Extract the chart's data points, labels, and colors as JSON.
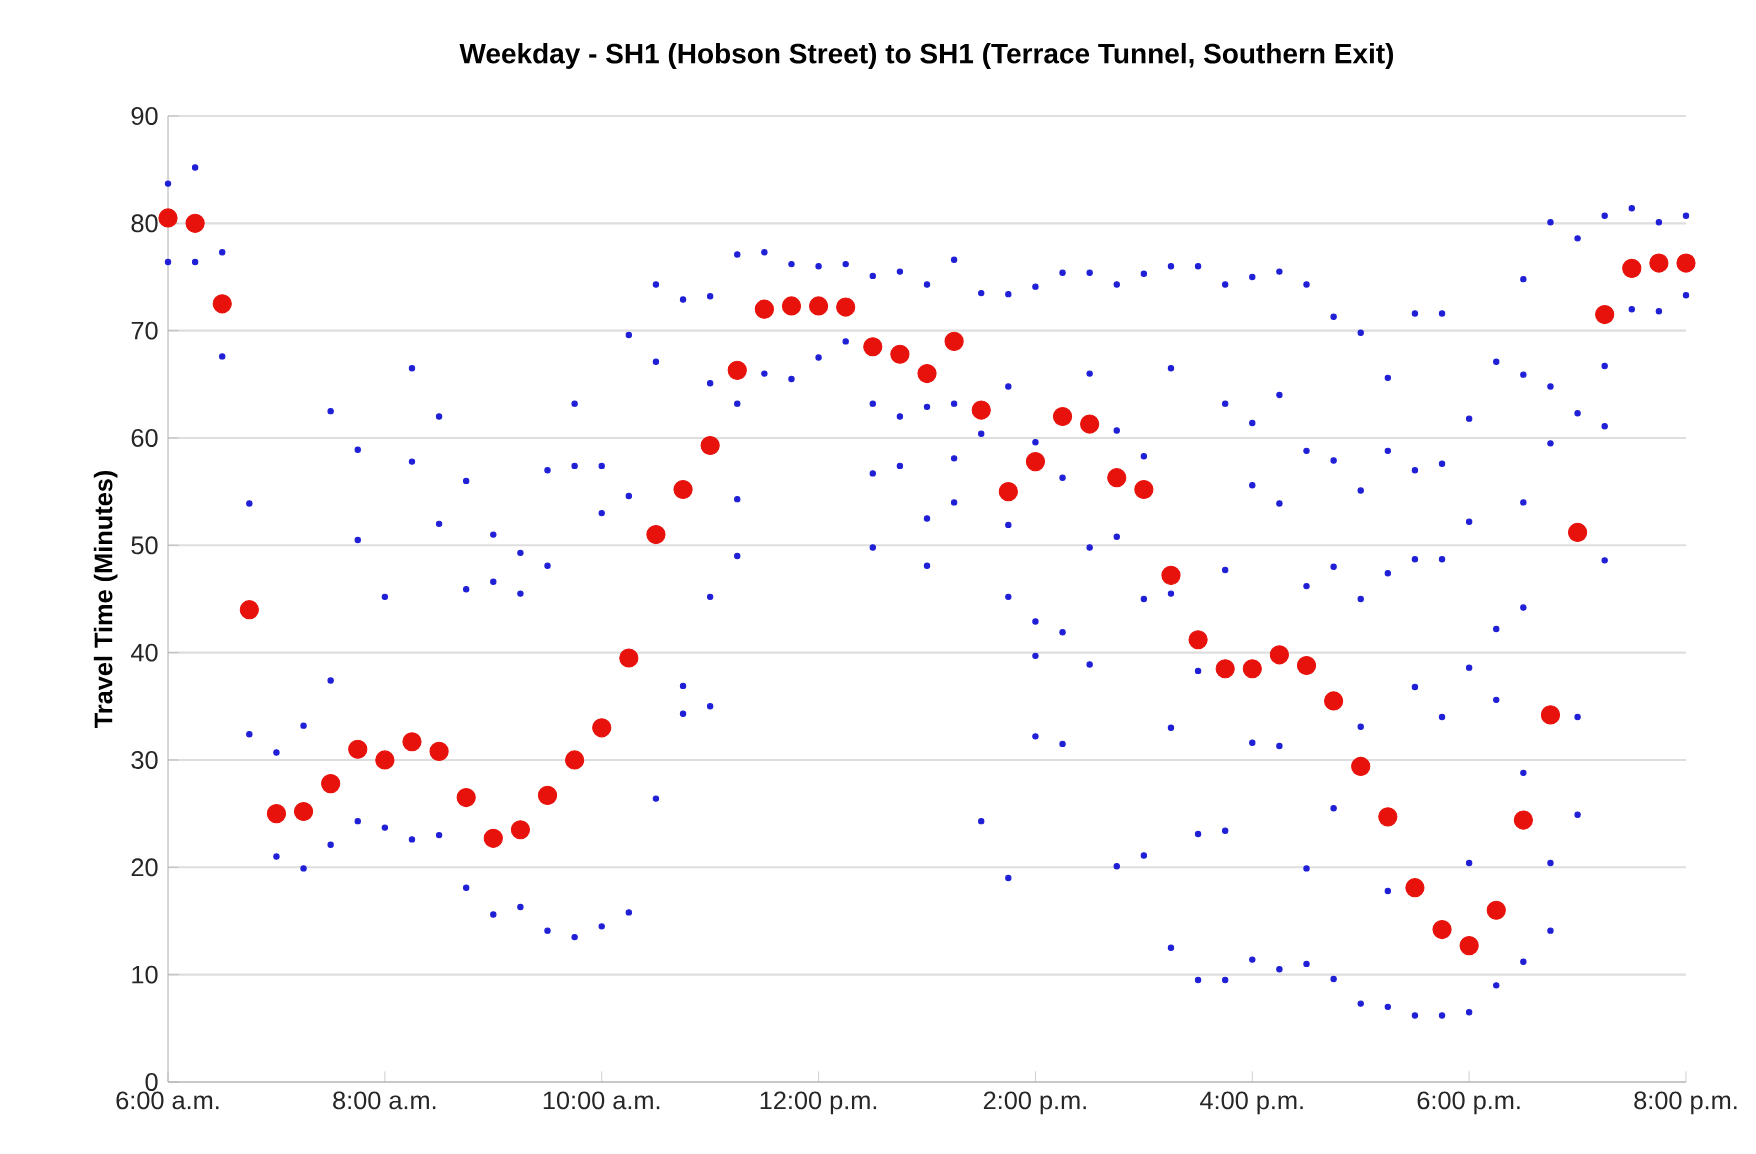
{
  "chart_data": {
    "type": "scatter",
    "title": "Weekday - SH1 (Hobson Street) to SH1 (Terrace Tunnel, Southern Exit)",
    "ylabel": "Travel Time (Minutes)",
    "xlim": [
      6,
      20
    ],
    "ylim": [
      0,
      90
    ],
    "xticks": [
      {
        "value": 6,
        "label": "6:00 a.m."
      },
      {
        "value": 8,
        "label": "8:00 a.m."
      },
      {
        "value": 10,
        "label": "10:00 a.m."
      },
      {
        "value": 12,
        "label": "12:00 p.m."
      },
      {
        "value": 14,
        "label": "2:00 p.m."
      },
      {
        "value": 16,
        "label": "4:00 p.m."
      },
      {
        "value": 18,
        "label": "6:00 p.m."
      },
      {
        "value": 20,
        "label": "8:00 p.m."
      }
    ],
    "yticks": [
      0,
      10,
      20,
      30,
      40,
      50,
      60,
      70,
      80,
      90
    ],
    "grid": "y",
    "series": [
      {
        "color": "#1f1fd6",
        "x": [
          6,
          6,
          6.25,
          6.25,
          6.5,
          6.5,
          6.75,
          6.75,
          7,
          7,
          7.25,
          7.25,
          7.5,
          7.5,
          7.5,
          7.75,
          7.75,
          7.75,
          8,
          8,
          8.25,
          8.25,
          8.25,
          8.5,
          8.5,
          8.5,
          8.75,
          8.75,
          8.75,
          9,
          9,
          9,
          9.25,
          9.25,
          9.25,
          9.5,
          9.5,
          9.5,
          9.75,
          9.75,
          9.75,
          10,
          10,
          10,
          10.25,
          10.25,
          10.25,
          10.5,
          10.5,
          10.5,
          10.75,
          10.75,
          10.75,
          11,
          11,
          11,
          11,
          11.25,
          11.25,
          11.25,
          11.25,
          11.5,
          11.5,
          11.75,
          11.75,
          12,
          12,
          12.25,
          12.25,
          12.5,
          12.5,
          12.5,
          12.5,
          12.75,
          12.75,
          12.75,
          13,
          13,
          13,
          13,
          13.25,
          13.25,
          13.25,
          13.25,
          13.5,
          13.5,
          13.5,
          13.75,
          13.75,
          13.75,
          13.75,
          13.75,
          14,
          14,
          14,
          14,
          14,
          14.25,
          14.25,
          14.25,
          14.25,
          14.5,
          14.5,
          14.5,
          14.5,
          14.75,
          14.75,
          14.75,
          14.75,
          15,
          15,
          15,
          15,
          15.25,
          15.25,
          15.25,
          15.25,
          15.25,
          15.5,
          15.5,
          15.5,
          15.5,
          15.75,
          15.75,
          15.75,
          15.75,
          15.75,
          16,
          16,
          16,
          16,
          16,
          16.25,
          16.25,
          16.25,
          16.25,
          16.25,
          16.5,
          16.5,
          16.5,
          16.5,
          16.5,
          16.75,
          16.75,
          16.75,
          16.75,
          16.75,
          17,
          17,
          17,
          17,
          17,
          17.25,
          17.25,
          17.25,
          17.25,
          17.25,
          17.5,
          17.5,
          17.5,
          17.5,
          17.5,
          17.75,
          17.75,
          17.75,
          17.75,
          17.75,
          18,
          18,
          18,
          18,
          18,
          18.25,
          18.25,
          18.25,
          18.25,
          18.5,
          18.5,
          18.5,
          18.5,
          18.5,
          18.5,
          18.75,
          18.75,
          18.75,
          18.75,
          18.75,
          19,
          19,
          19,
          19,
          19.25,
          19.25,
          19.25,
          19.25,
          19.5,
          19.5,
          19.75,
          19.75,
          20,
          20
        ],
        "values": [
          83.7,
          76.4,
          85.2,
          76.4,
          77.3,
          67.6,
          53.9,
          32.4,
          30.7,
          21,
          33.2,
          19.9,
          62.5,
          37.4,
          22.1,
          58.9,
          50.5,
          24.3,
          45.2,
          23.7,
          66.5,
          57.8,
          22.6,
          62,
          52,
          23,
          56,
          45.9,
          18.1,
          51,
          46.6,
          15.6,
          49.3,
          45.5,
          16.3,
          57,
          48.1,
          14.1,
          63.2,
          57.4,
          13.5,
          57.4,
          53,
          14.5,
          69.6,
          54.6,
          15.8,
          74.3,
          67.1,
          26.4,
          72.9,
          36.9,
          34.3,
          73.2,
          65.1,
          45.2,
          35,
          77.1,
          63.2,
          54.3,
          49,
          77.3,
          66,
          76.2,
          65.5,
          76,
          67.5,
          76.2,
          69,
          75.1,
          63.2,
          56.7,
          49.8,
          75.5,
          62,
          57.4,
          74.3,
          62.9,
          52.5,
          48.1,
          76.6,
          63.2,
          58.1,
          54,
          73.5,
          60.4,
          24.3,
          73.4,
          64.8,
          51.9,
          45.2,
          19,
          74.1,
          59.6,
          42.9,
          39.7,
          32.2,
          75.4,
          56.3,
          41.9,
          31.5,
          75.4,
          66,
          49.8,
          38.9,
          74.3,
          60.7,
          50.8,
          20.1,
          75.3,
          58.3,
          45,
          21.1,
          76,
          66.5,
          45.5,
          33,
          12.5,
          76,
          38.3,
          23.1,
          9.5,
          74.3,
          63.2,
          47.7,
          23.4,
          9.5,
          75,
          61.4,
          55.6,
          31.6,
          11.4,
          75.5,
          64,
          53.9,
          31.3,
          10.5,
          74.3,
          58.8,
          46.2,
          19.9,
          11,
          71.3,
          57.9,
          48,
          25.5,
          9.6,
          69.8,
          55.1,
          45,
          33.1,
          7.3,
          65.6,
          58.8,
          47.4,
          17.8,
          7,
          71.6,
          57,
          48.7,
          36.8,
          6.2,
          71.6,
          57.6,
          48.7,
          34,
          6.2,
          61.8,
          52.2,
          38.6,
          20.4,
          6.5,
          67.1,
          42.2,
          35.6,
          9,
          74.8,
          65.9,
          54,
          44.2,
          28.8,
          11.2,
          80.1,
          64.8,
          59.5,
          20.4,
          14.1,
          78.6,
          62.3,
          34,
          24.9,
          80.7,
          66.7,
          61.1,
          48.6,
          81.4,
          72,
          80.1,
          71.8,
          80.7,
          73.3
        ]
      },
      {
        "color": "#e8120c",
        "x": [
          6,
          6.25,
          6.5,
          6.75,
          7,
          7.25,
          7.5,
          7.75,
          8,
          8.25,
          8.5,
          8.75,
          9,
          9.25,
          9.5,
          9.75,
          10,
          10.25,
          10.5,
          10.75,
          11,
          11.25,
          11.5,
          11.75,
          12,
          12.25,
          12.5,
          12.75,
          13,
          13.25,
          13.5,
          13.75,
          14,
          14.25,
          14.5,
          14.75,
          15,
          15.25,
          15.5,
          15.75,
          16,
          16.25,
          16.5,
          16.75,
          17,
          17.25,
          17.5,
          17.75,
          18,
          18.25,
          18.5,
          18.75,
          19,
          19.25,
          19.5,
          19.75,
          20
        ],
        "values": [
          80.5,
          80,
          72.5,
          44,
          25,
          25.2,
          27.8,
          31,
          30,
          31.7,
          30.8,
          26.5,
          22.7,
          23.5,
          26.7,
          30,
          33,
          39.5,
          51,
          55.2,
          59.3,
          66.3,
          72,
          72.3,
          72.3,
          72.2,
          68.5,
          67.8,
          66,
          69,
          62.6,
          55,
          57.8,
          62,
          61.3,
          56.3,
          55.2,
          47.2,
          41.2,
          38.5,
          38.5,
          39.8,
          38.8,
          35.5,
          29.4,
          24.7,
          18.1,
          14.2,
          12.7,
          16,
          24.4,
          34.2,
          51.2,
          71.5,
          75.8,
          76.3,
          76.3
        ]
      }
    ]
  }
}
